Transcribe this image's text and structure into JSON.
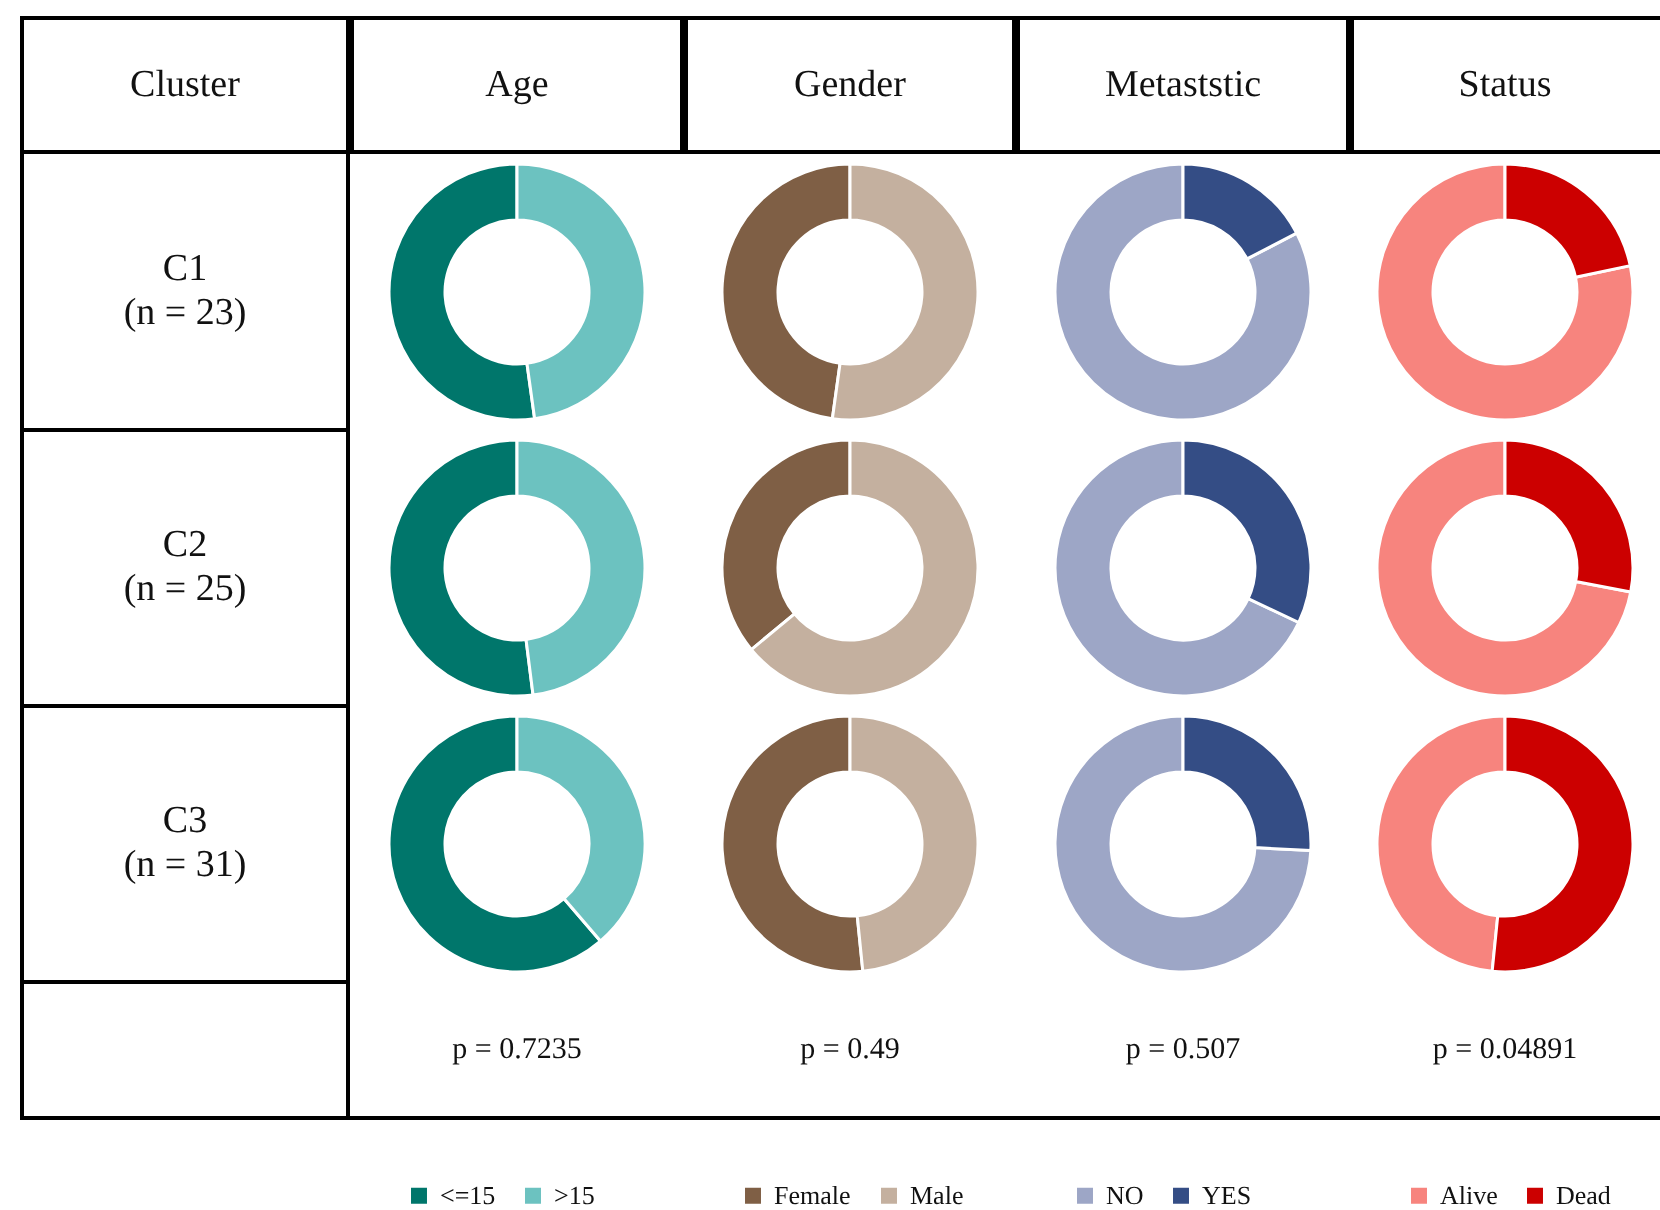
{
  "chart_data": [
    {
      "type": "donut",
      "title": "Age",
      "categories": [
        null,
        null
      ],
      "values": [
        52.2,
        47.8
      ],
      "colors": [
        "#00766b",
        "#6cc2c0"
      ],
      "annotations": [
        "Cluster",
        "C1\n(n = 23)"
      ],
      "legend": false
    },
    {
      "type": "donut",
      "title": "Gender",
      "categories": [
        null,
        null
      ],
      "values": [
        47.8,
        52.2
      ],
      "colors": [
        "#7f5f45",
        "#c4b09f"
      ],
      "legend": false
    },
    {
      "type": "donut",
      "title": "Metaststic",
      "categories": [
        null,
        null
      ],
      "values": [
        82.6,
        17.4
      ],
      "colors": [
        "#9da6c6",
        "#344d85"
      ],
      "legend": false
    },
    {
      "type": "donut",
      "title": "Status",
      "categories": [
        null,
        null
      ],
      "values": [
        78.3,
        21.7
      ],
      "colors": [
        "#f7847e",
        "#cc0000"
      ],
      "legend": false
    },
    {
      "type": "donut",
      "categories": [
        null,
        null
      ],
      "values": [
        52,
        48
      ],
      "colors": [
        "#00766b",
        "#6cc2c0"
      ],
      "annotations": [
        "C2\n(n = 25)"
      ],
      "legend": false
    },
    {
      "type": "donut",
      "categories": [
        null,
        null
      ],
      "values": [
        36,
        64
      ],
      "colors": [
        "#7f5f45",
        "#c4b09f"
      ],
      "legend": false
    },
    {
      "type": "donut",
      "categories": [
        null,
        null
      ],
      "values": [
        68,
        32
      ],
      "colors": [
        "#9da6c6",
        "#344d85"
      ],
      "legend": false
    },
    {
      "type": "donut",
      "categories": [
        null,
        null
      ],
      "values": [
        72,
        28
      ],
      "colors": [
        "#f7847e",
        "#cc0000"
      ],
      "legend": false
    },
    {
      "type": "donut",
      "categories": [
        "<=15",
        ">15"
      ],
      "values": [
        61.3,
        38.7
      ],
      "colors": [
        "#00766b",
        "#6cc2c0"
      ],
      "annotations": [
        "C3\n(n = 31)",
        "p = 0.7235"
      ],
      "legend": "bottom"
    },
    {
      "type": "donut",
      "categories": [
        "Female",
        "Male"
      ],
      "values": [
        51.6,
        48.4
      ],
      "colors": [
        "#7f5f45",
        "#c4b09f"
      ],
      "annotations": [
        "p = 0.49"
      ],
      "legend": "bottom"
    },
    {
      "type": "donut",
      "categories": [
        "NO",
        "YES"
      ],
      "values": [
        74.2,
        25.8
      ],
      "colors": [
        "#9da6c6",
        "#344d85"
      ],
      "annotations": [
        "p = 0.507"
      ],
      "legend": "bottom"
    },
    {
      "type": "donut",
      "categories": [
        "Alive",
        "Dead"
      ],
      "values": [
        48.4,
        51.6
      ],
      "colors": [
        "#f7847e",
        "#cc0000"
      ],
      "annotations": [
        "p = 0.04891"
      ],
      "legend": "bottom"
    }
  ]
}
